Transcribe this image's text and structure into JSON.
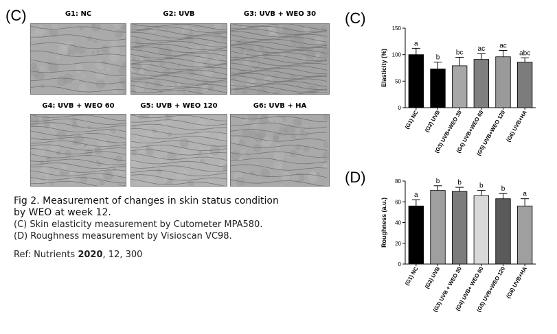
{
  "panels": {
    "c_left": "(C)",
    "c_right": "(C)",
    "d": "(D)"
  },
  "images": [
    {
      "title": "G1: NC",
      "tone": "#aaaaaa",
      "lines": 8
    },
    {
      "title": "G2: UVB",
      "tone": "#a6a6a6",
      "lines": 20
    },
    {
      "title": "G3: UVB + WEO 30",
      "tone": "#a2a2a2",
      "lines": 22
    },
    {
      "title": "G4: UVB + WEO 60",
      "tone": "#adadad",
      "lines": 16
    },
    {
      "title": "G5: UVB + WEO 120",
      "tone": "#b2b2b2",
      "lines": 14
    },
    {
      "title": "G6: UVB + HA",
      "tone": "#a9a9a9",
      "lines": 10
    }
  ],
  "caption": {
    "title_line1": "Fig 2. Measurement of changes in skin status condition",
    "title_line2": "by WEO at week 12.",
    "line_c": "(C) Skin elasticity measurement by Cutometer MPA580.",
    "line_d": "(D) Roughness measurement by Visioscan VC98.",
    "ref_prefix": "Ref: Nutrients ",
    "ref_year": "2020",
    "ref_suffix": ", 12, 300"
  },
  "chart_data": [
    {
      "type": "bar",
      "ylabel": "Elasticity (%)",
      "ylim": [
        0,
        150
      ],
      "yticks": [
        0,
        50,
        100,
        150
      ],
      "categories": [
        "(G1) NC",
        "(G2) UVB",
        "(G3) UVB+WEO 30",
        "(G4) UVB+WEO 60",
        "(G5) UVB+WEO 120",
        "(G6) UVB+HA"
      ],
      "values": [
        100,
        73,
        79,
        91,
        96,
        86
      ],
      "errors": [
        12,
        13,
        16,
        11,
        12,
        8
      ],
      "significance": [
        "a",
        "b",
        "bc",
        "ac",
        "ac",
        "abc"
      ],
      "colors": [
        "#000000",
        "#000000",
        "#a7a7a7",
        "#7f7f7f",
        "#9a9a9a",
        "#7c7c7c"
      ]
    },
    {
      "type": "bar",
      "ylabel": "Roughness (a.u.)",
      "ylim": [
        0,
        80
      ],
      "yticks": [
        0,
        20,
        40,
        60,
        80
      ],
      "categories": [
        "(G1) NC",
        "(G2) UVB",
        "(G3) UVB + WEO 30",
        "(G4) UVB+ WEO 60",
        "(G5) UVB+WEO 120",
        "(G6) UVB+HA"
      ],
      "values": [
        56,
        71,
        70,
        66,
        63,
        56
      ],
      "errors": [
        6,
        4.5,
        4,
        5,
        5,
        7
      ],
      "significance": [
        "a",
        "b",
        "b",
        "b",
        "b",
        "a"
      ],
      "colors": [
        "#000000",
        "#9f9f9f",
        "#7c7c7c",
        "#d9d9d9",
        "#5a5a5a",
        "#9f9f9f"
      ]
    }
  ]
}
